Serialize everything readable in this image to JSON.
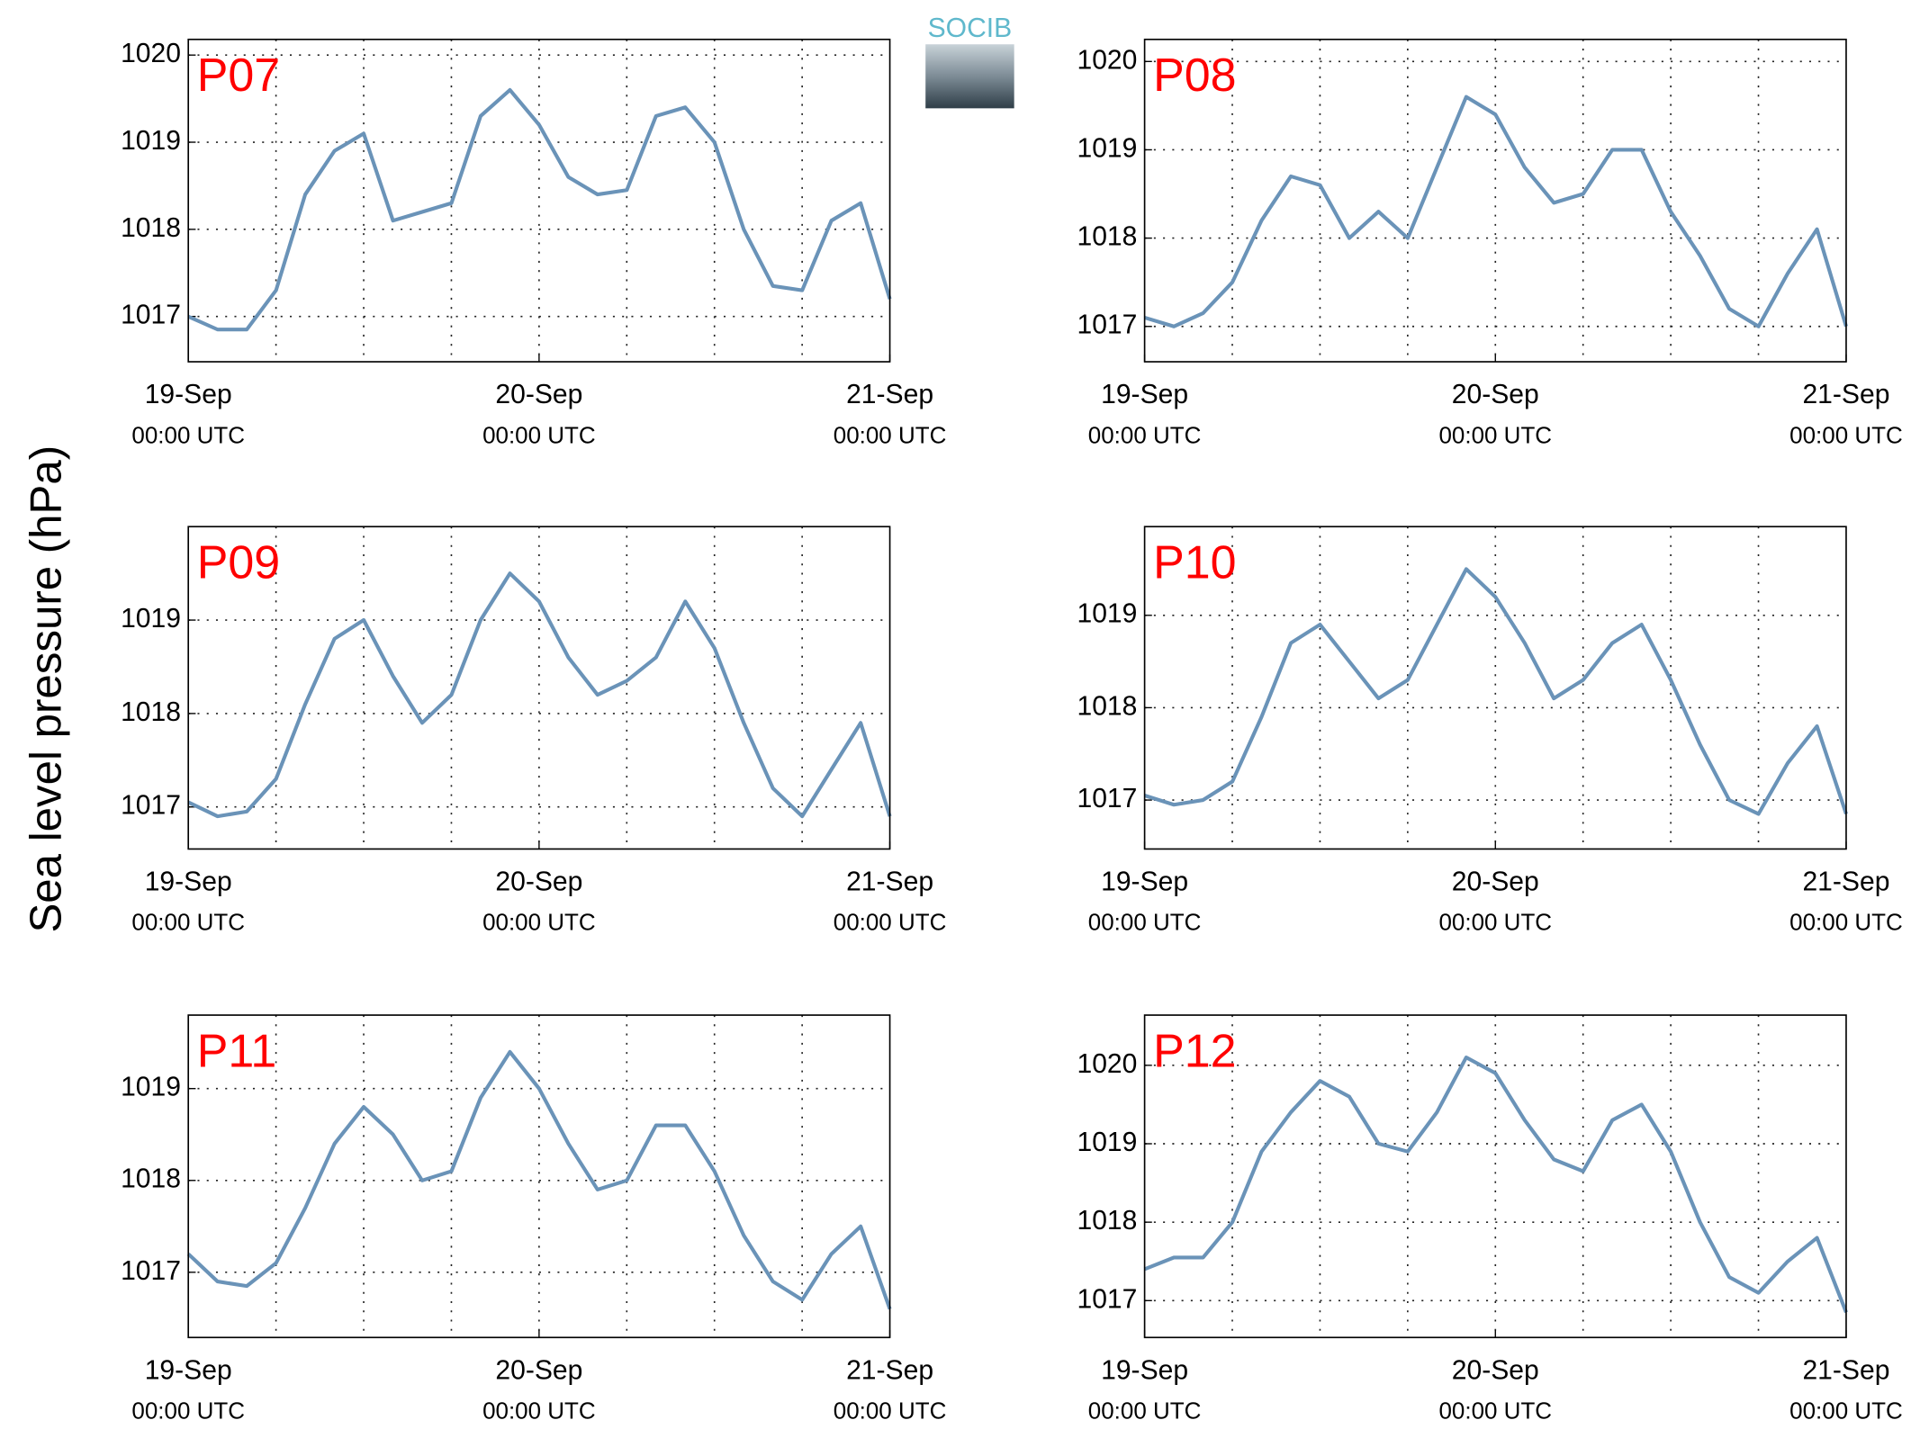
{
  "ylabel": "Sea level pressure (hPa)",
  "logo": "SOCIB",
  "chart_data": [
    {
      "type": "line",
      "title": "P07",
      "color": "#6a93b8",
      "grid": true,
      "x": [
        0,
        2,
        4,
        6,
        8,
        10,
        12,
        14,
        16,
        18,
        20,
        22,
        24,
        26,
        28,
        30,
        32,
        34,
        36,
        38,
        40,
        42,
        44,
        46,
        48
      ],
      "values": [
        1017.0,
        1016.85,
        1016.85,
        1017.3,
        1018.4,
        1018.9,
        1019.1,
        1018.1,
        1018.2,
        1018.3,
        1019.3,
        1019.6,
        1019.2,
        1018.6,
        1018.4,
        1018.45,
        1019.3,
        1019.4,
        1019.0,
        1018.0,
        1017.35,
        1017.3,
        1018.1,
        1018.3,
        1017.2
      ],
      "xlim": [
        0,
        48
      ],
      "ylim": [
        1016.48,
        1020.18
      ],
      "yticks": [
        1017,
        1018,
        1019,
        1020
      ],
      "xticks": [
        {
          "value": 0,
          "label": [
            "19-Sep",
            "00:00 UTC"
          ]
        },
        {
          "value": 24,
          "label": [
            "20-Sep",
            "00:00 UTC"
          ]
        },
        {
          "value": 48,
          "label": [
            "21-Sep",
            "00:00 UTC"
          ]
        }
      ],
      "xgrid": [
        6,
        12,
        18,
        24,
        30,
        36,
        42
      ]
    },
    {
      "type": "line",
      "title": "P08",
      "color": "#6a93b8",
      "grid": true,
      "x": [
        0,
        2,
        4,
        6,
        8,
        10,
        12,
        14,
        16,
        18,
        20,
        22,
        24,
        26,
        28,
        30,
        32,
        34,
        36,
        38,
        40,
        42,
        44,
        46,
        48
      ],
      "values": [
        1017.1,
        1017.0,
        1017.15,
        1017.5,
        1018.2,
        1018.7,
        1018.6,
        1018.0,
        1018.3,
        1018.0,
        1018.8,
        1019.6,
        1019.4,
        1018.8,
        1018.4,
        1018.5,
        1019.0,
        1019.0,
        1018.3,
        1017.8,
        1017.2,
        1017.0,
        1017.6,
        1018.1,
        1017.0
      ],
      "xlim": [
        0,
        48
      ],
      "ylim": [
        1016.6,
        1020.25
      ],
      "yticks": [
        1017,
        1018,
        1019,
        1020
      ],
      "xticks": [
        {
          "value": 0,
          "label": [
            "19-Sep",
            "00:00 UTC"
          ]
        },
        {
          "value": 24,
          "label": [
            "20-Sep",
            "00:00 UTC"
          ]
        },
        {
          "value": 48,
          "label": [
            "21-Sep",
            "00:00 UTC"
          ]
        }
      ],
      "xgrid": [
        6,
        12,
        18,
        24,
        30,
        36,
        42
      ]
    },
    {
      "type": "line",
      "title": "P09",
      "color": "#6a93b8",
      "grid": true,
      "x": [
        0,
        2,
        4,
        6,
        8,
        10,
        12,
        14,
        16,
        18,
        20,
        22,
        24,
        26,
        28,
        30,
        32,
        34,
        36,
        38,
        40,
        42,
        44,
        46,
        48
      ],
      "values": [
        1017.05,
        1016.9,
        1016.95,
        1017.3,
        1018.1,
        1018.8,
        1019.0,
        1018.4,
        1017.9,
        1018.2,
        1019.0,
        1019.5,
        1019.2,
        1018.6,
        1018.2,
        1018.35,
        1018.6,
        1019.2,
        1018.7,
        1017.9,
        1017.2,
        1016.9,
        1017.4,
        1017.9,
        1016.9
      ],
      "xlim": [
        0,
        48
      ],
      "ylim": [
        1016.55,
        1020
      ],
      "yticks": [
        1017,
        1018,
        1019
      ],
      "xticks": [
        {
          "value": 0,
          "label": [
            "19-Sep",
            "00:00 UTC"
          ]
        },
        {
          "value": 24,
          "label": [
            "20-Sep",
            "00:00 UTC"
          ]
        },
        {
          "value": 48,
          "label": [
            "21-Sep",
            "00:00 UTC"
          ]
        }
      ],
      "xgrid": [
        6,
        12,
        18,
        24,
        30,
        36,
        42
      ]
    },
    {
      "type": "line",
      "title": "P10",
      "color": "#6a93b8",
      "grid": true,
      "x": [
        0,
        2,
        4,
        6,
        8,
        10,
        12,
        14,
        16,
        18,
        20,
        22,
        24,
        26,
        28,
        30,
        32,
        34,
        36,
        38,
        40,
        42,
        44,
        46,
        48
      ],
      "values": [
        1017.05,
        1016.95,
        1017.0,
        1017.2,
        1017.9,
        1018.7,
        1018.9,
        1018.5,
        1018.1,
        1018.3,
        1018.9,
        1019.5,
        1019.2,
        1018.7,
        1018.1,
        1018.3,
        1018.7,
        1018.9,
        1018.3,
        1017.6,
        1017.0,
        1016.85,
        1017.4,
        1017.8,
        1016.85
      ],
      "xlim": [
        0,
        48
      ],
      "ylim": [
        1016.47,
        1019.96
      ],
      "yticks": [
        1017,
        1018,
        1019
      ],
      "xticks": [
        {
          "value": 0,
          "label": [
            "19-Sep",
            "00:00 UTC"
          ]
        },
        {
          "value": 24,
          "label": [
            "20-Sep",
            "00:00 UTC"
          ]
        },
        {
          "value": 48,
          "label": [
            "21-Sep",
            "00:00 UTC"
          ]
        }
      ],
      "xgrid": [
        6,
        12,
        18,
        24,
        30,
        36,
        42
      ]
    },
    {
      "type": "line",
      "title": "P11",
      "color": "#6a93b8",
      "grid": true,
      "x": [
        0,
        2,
        4,
        6,
        8,
        10,
        12,
        14,
        16,
        18,
        20,
        22,
        24,
        26,
        28,
        30,
        32,
        34,
        36,
        38,
        40,
        42,
        44,
        46,
        48
      ],
      "values": [
        1017.2,
        1016.9,
        1016.85,
        1017.1,
        1017.7,
        1018.4,
        1018.8,
        1018.5,
        1018.0,
        1018.1,
        1018.9,
        1019.4,
        1019.0,
        1018.4,
        1017.9,
        1018.0,
        1018.6,
        1018.6,
        1018.1,
        1017.4,
        1016.9,
        1016.7,
        1017.2,
        1017.5,
        1016.6
      ],
      "xlim": [
        0,
        48
      ],
      "ylim": [
        1016.29,
        1019.8
      ],
      "yticks": [
        1017,
        1018,
        1019
      ],
      "xticks": [
        {
          "value": 0,
          "label": [
            "19-Sep",
            "00:00 UTC"
          ]
        },
        {
          "value": 24,
          "label": [
            "20-Sep",
            "00:00 UTC"
          ]
        },
        {
          "value": 48,
          "label": [
            "21-Sep",
            "00:00 UTC"
          ]
        }
      ],
      "xgrid": [
        6,
        12,
        18,
        24,
        30,
        36,
        42
      ]
    },
    {
      "type": "line",
      "title": "P12",
      "color": "#6a93b8",
      "grid": true,
      "x": [
        0,
        2,
        4,
        6,
        8,
        10,
        12,
        14,
        16,
        18,
        20,
        22,
        24,
        26,
        28,
        30,
        32,
        34,
        36,
        38,
        40,
        42,
        44,
        46,
        48
      ],
      "values": [
        1017.4,
        1017.55,
        1017.55,
        1018.0,
        1018.9,
        1019.4,
        1019.8,
        1019.6,
        1019.0,
        1018.9,
        1019.4,
        1020.1,
        1019.9,
        1019.3,
        1018.8,
        1018.65,
        1019.3,
        1019.5,
        1018.9,
        1018.0,
        1017.3,
        1017.1,
        1017.5,
        1017.8,
        1016.85
      ],
      "xlim": [
        0,
        48
      ],
      "ylim": [
        1016.53,
        1020.64
      ],
      "yticks": [
        1017,
        1018,
        1019,
        1020
      ],
      "xticks": [
        {
          "value": 0,
          "label": [
            "19-Sep",
            "00:00 UTC"
          ]
        },
        {
          "value": 24,
          "label": [
            "20-Sep",
            "00:00 UTC"
          ]
        },
        {
          "value": 48,
          "label": [
            "21-Sep",
            "00:00 UTC"
          ]
        }
      ],
      "xgrid": [
        6,
        12,
        18,
        24,
        30,
        36,
        42
      ]
    }
  ]
}
